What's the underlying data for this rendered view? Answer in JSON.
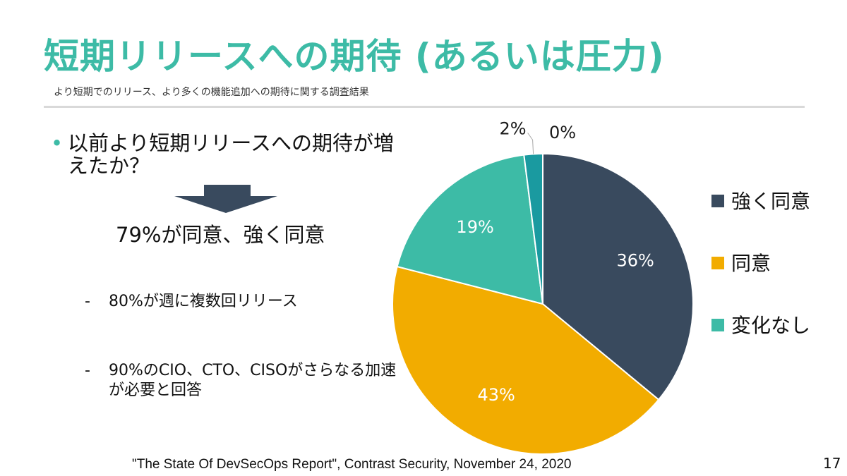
{
  "slide": {
    "title": "短期リリースへの期待 (あるいは圧力)",
    "subtitle": "より短期でのリリース、より多くの機能追加への期待に関する調査結果",
    "bullet": "以前より短期リリースへの期待が増えたか？",
    "arrow_icon": "down-arrow-icon",
    "result": "79%が同意、強く同意",
    "sub_items": [
      {
        "dash": "-",
        "text": "80%が週に複数回リリース"
      },
      {
        "dash": "-",
        "text": "90%のCIO、CTO、CISOがさらなる加速が必要と回答"
      }
    ],
    "footer": "\"The State Of DevSecOps Report\", Contrast Security, November 24, 2020",
    "page_number": "17"
  },
  "colors": {
    "accent": "#3dbba6",
    "arrow": "#394a5e"
  },
  "chart_data": {
    "type": "pie",
    "legend_position": "right",
    "slices": [
      {
        "label": "強く同意",
        "value": 36,
        "display": "36%",
        "color": "#394a5e",
        "in_legend": true
      },
      {
        "label": "同意",
        "value": 43,
        "display": "43%",
        "color": "#f2ac00",
        "in_legend": true
      },
      {
        "label": "変化なし",
        "value": 19,
        "display": "19%",
        "color": "#3dbba6",
        "in_legend": true
      },
      {
        "label": "",
        "value": 2,
        "display": "2%",
        "color": "#1a9aa0",
        "in_legend": false
      },
      {
        "label": "",
        "value": 0,
        "display": "0%",
        "color": "#7fbfd8",
        "in_legend": false
      }
    ]
  }
}
